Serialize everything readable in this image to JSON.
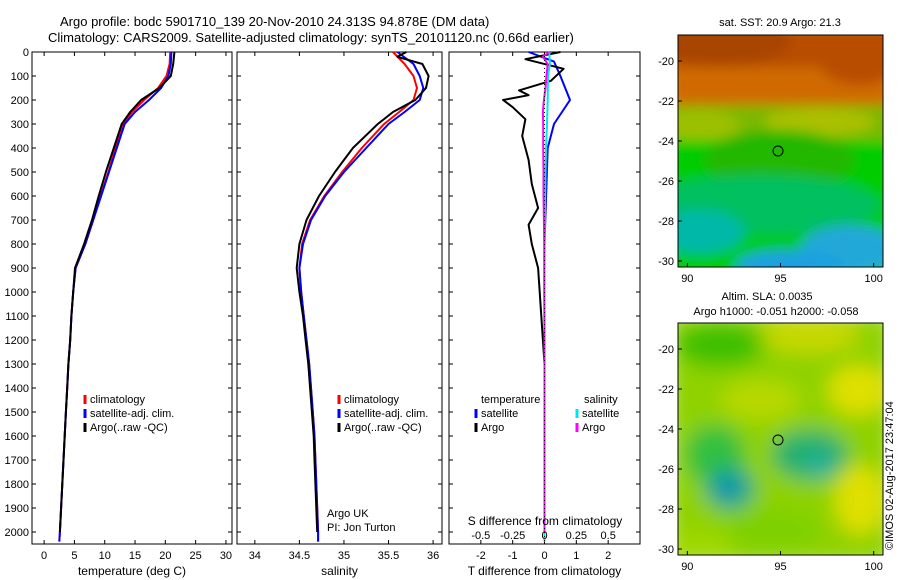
{
  "header": {
    "line1": "Argo profile: bodc 5901710_139 20-Nov-2010 24.313S 94.878E (DM data)",
    "line2": "Climatology: CARS2009. Satellite-adjusted climatology: synTS_20101120.nc (0.66d earlier)"
  },
  "colors": {
    "climatology": "#ff0000",
    "satellite": "#0000ff",
    "argo": "#000000",
    "salinity_sat": "#00e5ee",
    "salinity_argo": "#ff00ff"
  },
  "chart_data": [
    {
      "type": "line",
      "name": "temperature-profile",
      "xlabel": "temperature (deg C)",
      "ylabel": "",
      "xlim": [
        -2,
        31
      ],
      "ylim": [
        2050,
        0
      ],
      "x_ticks": [
        0,
        5,
        10,
        15,
        20,
        25,
        30
      ],
      "y_ticks": [
        0,
        100,
        200,
        300,
        400,
        500,
        600,
        700,
        800,
        900,
        1000,
        1100,
        1200,
        1300,
        1400,
        1500,
        1600,
        1700,
        1800,
        1900,
        2000
      ],
      "legend": [
        "climatology",
        "satellite-adj. clim.",
        "Argo(..raw -QC)"
      ],
      "series": [
        {
          "name": "climatology",
          "color": "#ff0000",
          "points": [
            [
              20.8,
              0
            ],
            [
              20.7,
              50
            ],
            [
              20.2,
              100
            ],
            [
              18.8,
              150
            ],
            [
              16.5,
              200
            ],
            [
              14.5,
              250
            ],
            [
              13.0,
              300
            ],
            [
              11.8,
              400
            ],
            [
              10.6,
              500
            ],
            [
              9.3,
              600
            ],
            [
              8.1,
              700
            ],
            [
              6.8,
              800
            ],
            [
              5.2,
              900
            ],
            [
              4.8,
              1000
            ],
            [
              4.5,
              1100
            ],
            [
              4.3,
              1200
            ],
            [
              4.0,
              1300
            ],
            [
              3.8,
              1400
            ],
            [
              3.6,
              1500
            ],
            [
              3.4,
              1600
            ],
            [
              3.2,
              1700
            ],
            [
              3.0,
              1800
            ],
            [
              2.8,
              1900
            ],
            [
              2.6,
              2000
            ],
            [
              2.5,
              2040
            ]
          ]
        },
        {
          "name": "satellite-adj. clim.",
          "color": "#0000ff",
          "points": [
            [
              21.0,
              0
            ],
            [
              20.9,
              50
            ],
            [
              20.5,
              100
            ],
            [
              19.3,
              150
            ],
            [
              17.3,
              200
            ],
            [
              15.0,
              250
            ],
            [
              13.3,
              300
            ],
            [
              12.0,
              400
            ],
            [
              10.7,
              500
            ],
            [
              9.4,
              600
            ],
            [
              8.1,
              700
            ],
            [
              6.8,
              800
            ],
            [
              5.2,
              900
            ],
            [
              4.8,
              1000
            ],
            [
              4.5,
              1100
            ],
            [
              4.3,
              1200
            ],
            [
              4.0,
              1300
            ],
            [
              3.8,
              1400
            ],
            [
              3.6,
              1500
            ],
            [
              3.4,
              1600
            ],
            [
              3.2,
              1700
            ],
            [
              3.0,
              1800
            ],
            [
              2.8,
              1900
            ],
            [
              2.6,
              2000
            ],
            [
              2.5,
              2040
            ]
          ]
        },
        {
          "name": "Argo(..raw -QC)",
          "color": "#000000",
          "points": [
            [
              21.5,
              0
            ],
            [
              21.3,
              50
            ],
            [
              20.9,
              100
            ],
            [
              19.0,
              150
            ],
            [
              16.0,
              200
            ],
            [
              14.2,
              250
            ],
            [
              12.8,
              300
            ],
            [
              11.5,
              400
            ],
            [
              10.2,
              500
            ],
            [
              9.0,
              600
            ],
            [
              7.9,
              700
            ],
            [
              6.6,
              800
            ],
            [
              5.1,
              900
            ],
            [
              4.8,
              1000
            ],
            [
              4.5,
              1100
            ],
            [
              4.3,
              1200
            ],
            [
              4.0,
              1300
            ],
            [
              3.8,
              1400
            ],
            [
              3.6,
              1500
            ],
            [
              3.4,
              1600
            ],
            [
              3.2,
              1700
            ],
            [
              3.0,
              1800
            ],
            [
              2.8,
              1900
            ],
            [
              2.6,
              2000
            ]
          ]
        }
      ]
    },
    {
      "type": "line",
      "name": "salinity-profile",
      "xlabel": "salinity",
      "ylabel": "",
      "xlim": [
        33.8,
        36.1
      ],
      "ylim": [
        2050,
        0
      ],
      "x_ticks": [
        34,
        34.5,
        35,
        35.5,
        36
      ],
      "legend": [
        "climatology",
        "satellite-adj. clim.",
        "Argo(..raw -QC)"
      ],
      "annotation": [
        "Argo UK",
        "PI: Jon Turton"
      ],
      "series": [
        {
          "name": "climatology",
          "color": "#ff0000",
          "points": [
            [
              35.55,
              0
            ],
            [
              35.68,
              50
            ],
            [
              35.78,
              100
            ],
            [
              35.82,
              150
            ],
            [
              35.78,
              200
            ],
            [
              35.62,
              250
            ],
            [
              35.45,
              300
            ],
            [
              35.2,
              400
            ],
            [
              34.98,
              500
            ],
            [
              34.78,
              600
            ],
            [
              34.62,
              700
            ],
            [
              34.53,
              800
            ],
            [
              34.5,
              900
            ],
            [
              34.52,
              1000
            ],
            [
              34.55,
              1100
            ],
            [
              34.58,
              1200
            ],
            [
              34.61,
              1300
            ],
            [
              34.63,
              1400
            ],
            [
              34.65,
              1500
            ],
            [
              34.67,
              1600
            ],
            [
              34.68,
              1700
            ],
            [
              34.69,
              1800
            ],
            [
              34.7,
              1900
            ],
            [
              34.71,
              2000
            ],
            [
              34.71,
              2040
            ]
          ]
        },
        {
          "name": "satellite-adj. clim.",
          "color": "#0000ff",
          "points": [
            [
              35.6,
              0
            ],
            [
              35.78,
              50
            ],
            [
              35.85,
              100
            ],
            [
              35.89,
              150
            ],
            [
              35.85,
              200
            ],
            [
              35.68,
              250
            ],
            [
              35.5,
              300
            ],
            [
              35.25,
              400
            ],
            [
              35.0,
              500
            ],
            [
              34.79,
              600
            ],
            [
              34.63,
              700
            ],
            [
              34.54,
              800
            ],
            [
              34.5,
              900
            ],
            [
              34.52,
              1000
            ],
            [
              34.55,
              1100
            ],
            [
              34.58,
              1200
            ],
            [
              34.61,
              1300
            ],
            [
              34.63,
              1400
            ],
            [
              34.65,
              1500
            ],
            [
              34.67,
              1600
            ],
            [
              34.68,
              1700
            ],
            [
              34.69,
              1800
            ],
            [
              34.7,
              1900
            ],
            [
              34.71,
              2000
            ],
            [
              34.71,
              2040
            ]
          ]
        },
        {
          "name": "Argo(..raw -QC)",
          "color": "#000000",
          "points": [
            [
              35.7,
              0
            ],
            [
              35.6,
              20
            ],
            [
              35.88,
              50
            ],
            [
              35.95,
              100
            ],
            [
              35.92,
              150
            ],
            [
              35.8,
              200
            ],
            [
              35.55,
              250
            ],
            [
              35.38,
              300
            ],
            [
              35.1,
              400
            ],
            [
              34.9,
              500
            ],
            [
              34.72,
              600
            ],
            [
              34.58,
              700
            ],
            [
              34.5,
              800
            ],
            [
              34.47,
              900
            ],
            [
              34.5,
              1000
            ],
            [
              34.54,
              1100
            ],
            [
              34.57,
              1200
            ],
            [
              34.6,
              1300
            ],
            [
              34.62,
              1400
            ],
            [
              34.64,
              1500
            ],
            [
              34.66,
              1600
            ],
            [
              34.67,
              1700
            ],
            [
              34.68,
              1800
            ],
            [
              34.69,
              1900
            ],
            [
              34.7,
              2000
            ]
          ]
        }
      ]
    },
    {
      "type": "line",
      "name": "difference-profile",
      "xlabel": "T difference from climatology",
      "x2label": "S difference from climatology",
      "xlim": [
        -3,
        3
      ],
      "ylim": [
        2050,
        0
      ],
      "x_ticks": [
        -2,
        -1,
        0,
        1,
        2
      ],
      "x2_ticks": [
        "-0.5",
        "-0.25",
        "0",
        "0.25",
        "0.5"
      ],
      "legend_groups": [
        {
          "title": "temperature",
          "items": [
            "satellite",
            "Argo"
          ]
        },
        {
          "title": "salinity",
          "items": [
            "satellite",
            "Argo"
          ]
        }
      ],
      "series": [
        {
          "name": "temperature satellite",
          "color": "#0000ff",
          "points": [
            [
              -0.5,
              0
            ],
            [
              0.3,
              40
            ],
            [
              0.5,
              100
            ],
            [
              0.8,
              200
            ],
            [
              0.3,
              300
            ],
            [
              0.1,
              400
            ],
            [
              0.05,
              600
            ],
            [
              0.0,
              800
            ],
            [
              0.0,
              1000
            ],
            [
              0.0,
              1500
            ],
            [
              0.0,
              2000
            ],
            [
              0.0,
              2040
            ]
          ]
        },
        {
          "name": "temperature Argo",
          "color": "#000000",
          "points": [
            [
              0.5,
              0
            ],
            [
              -0.6,
              30
            ],
            [
              0.6,
              70
            ],
            [
              0.2,
              120
            ],
            [
              -0.8,
              160
            ],
            [
              -0.5,
              180
            ],
            [
              -1.3,
              200
            ],
            [
              -1.0,
              230
            ],
            [
              -0.6,
              280
            ],
            [
              -0.7,
              350
            ],
            [
              -0.5,
              450
            ],
            [
              -0.4,
              550
            ],
            [
              -0.2,
              650
            ],
            [
              -0.5,
              720
            ],
            [
              -0.4,
              800
            ],
            [
              -0.2,
              900
            ],
            [
              -0.1,
              1100
            ],
            [
              0.0,
              1300
            ],
            [
              0.0,
              1500
            ],
            [
              0.0,
              1800
            ],
            [
              0.0,
              2000
            ]
          ]
        },
        {
          "name": "salinity satellite",
          "color": "#00e5ee",
          "points": [
            [
              0.15,
              0
            ],
            [
              0.17,
              50
            ],
            [
              0.11,
              100
            ],
            [
              0.1,
              200
            ],
            [
              0.08,
              300
            ],
            [
              0.05,
              400
            ],
            [
              0.03,
              500
            ],
            [
              0.01,
              700
            ],
            [
              0.0,
              900
            ],
            [
              0.0,
              1200
            ],
            [
              0.0,
              1600
            ],
            [
              0.0,
              2000
            ],
            [
              0.0,
              2040
            ]
          ]
        },
        {
          "name": "salinity Argo",
          "color": "#ff00ff",
          "points": [
            [
              0.15,
              0
            ],
            [
              -0.05,
              20
            ],
            [
              0.1,
              50
            ],
            [
              0.06,
              100
            ],
            [
              0.03,
              150
            ],
            [
              -0.02,
              200
            ],
            [
              -0.05,
              250
            ],
            [
              -0.04,
              300
            ],
            [
              -0.04,
              400
            ],
            [
              -0.03,
              500
            ],
            [
              -0.03,
              600
            ],
            [
              -0.02,
              700
            ],
            [
              -0.01,
              800
            ],
            [
              -0.01,
              1000
            ],
            [
              0.0,
              1200
            ],
            [
              0.0,
              1500
            ],
            [
              0.0,
              2000
            ]
          ]
        }
      ]
    },
    {
      "type": "heatmap",
      "name": "sst-map",
      "title": "sat. SST: 20.9  Argo: 21.3",
      "xlim": [
        89.5,
        100.5
      ],
      "ylim": [
        -30.3,
        -18.7
      ],
      "x_ticks": [
        "90",
        "95",
        "100"
      ],
      "y_ticks": [
        "-20",
        "-22",
        "-24",
        "-26",
        "-28",
        "-30"
      ],
      "marker": [
        94.9,
        -24.3
      ]
    },
    {
      "type": "heatmap",
      "name": "sla-map",
      "title": [
        "Altim. SLA: 0.0035",
        "Argo h1000: -0.051 h2000: -0.058"
      ],
      "xlim": [
        89.5,
        100.5
      ],
      "ylim": [
        -30.3,
        -18.7
      ],
      "x_ticks": [
        "90",
        "95",
        "100"
      ],
      "y_ticks": [
        "-20",
        "-22",
        "-24",
        "-26",
        "-28",
        "-30"
      ],
      "marker": [
        94.9,
        -24.3
      ]
    }
  ],
  "footer": {
    "stamp": "©IMOS 02-Aug-2017 23:47:04"
  }
}
